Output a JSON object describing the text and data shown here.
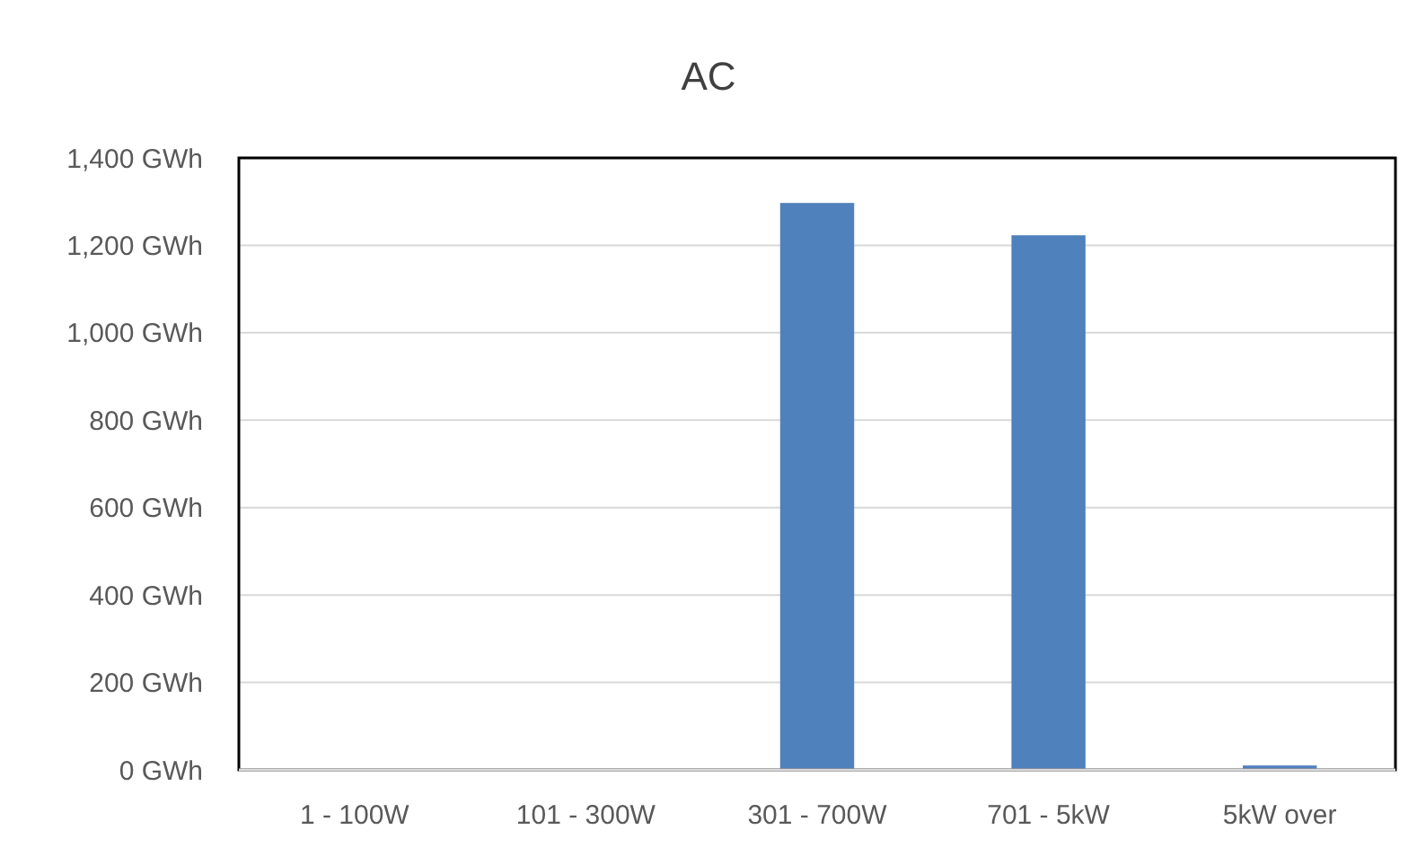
{
  "chart_data": {
    "type": "bar",
    "title": "AC",
    "categories": [
      "1 - 100W",
      "101 - 300W",
      "301 - 700W",
      "701 - 5kW",
      "5kW over"
    ],
    "values": [
      0,
      0,
      1297,
      1223,
      10
    ],
    "color": "#4f81bd",
    "ylim": [
      0,
      1400
    ],
    "yticks": [
      {
        "value": 0,
        "label": "0 GWh"
      },
      {
        "value": 200,
        "label": "200 GWh"
      },
      {
        "value": 400,
        "label": "400 GWh"
      },
      {
        "value": 600,
        "label": "600 GWh"
      },
      {
        "value": 800,
        "label": "800 GWh"
      },
      {
        "value": 1000,
        "label": "1,000 GWh"
      },
      {
        "value": 1200,
        "label": "1,200 GWh"
      },
      {
        "value": 1400,
        "label": "1,400 GWh"
      }
    ],
    "grid": "y"
  }
}
